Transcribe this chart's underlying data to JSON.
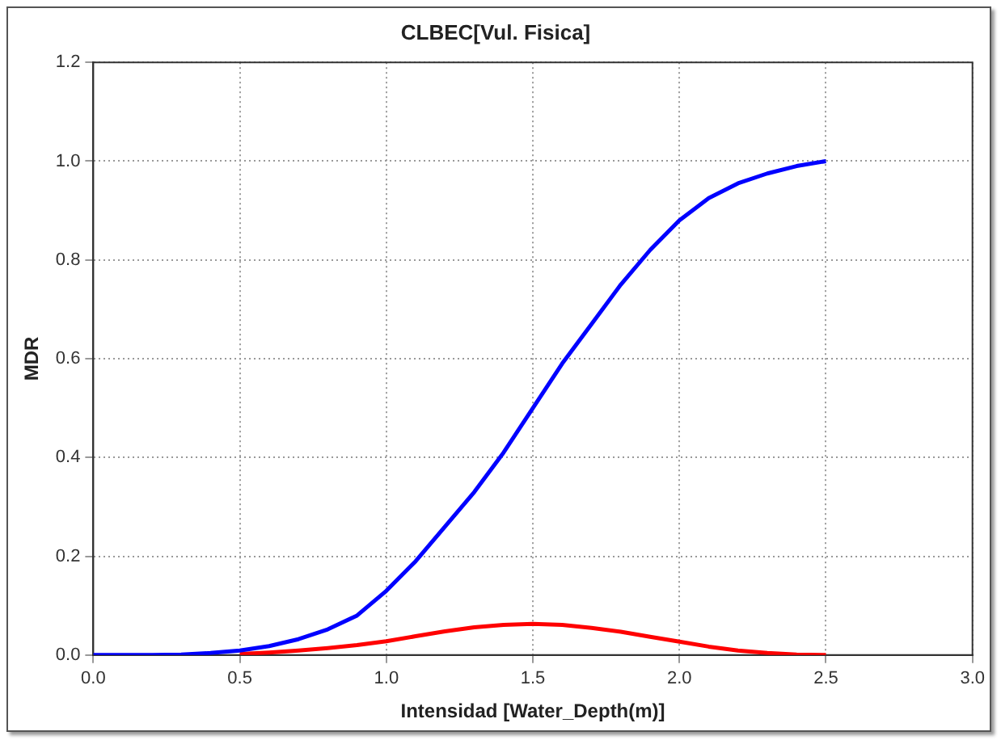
{
  "chart_data": {
    "type": "line",
    "title": "CLBEC[Vul. Fisica]",
    "xlabel": "Intensidad [Water_Depth(m)]",
    "ylabel": "MDR",
    "x": [
      0,
      0.1,
      0.2,
      0.3,
      0.4,
      0.5,
      0.6,
      0.7,
      0.8,
      0.9,
      1.0,
      1.1,
      1.2,
      1.3,
      1.4,
      1.5,
      1.6,
      1.7,
      1.8,
      1.9,
      2.0,
      2.1,
      2.2,
      2.3,
      2.4,
      2.5
    ],
    "series": [
      {
        "color": "#0000ff",
        "values": [
          0,
          0,
          0,
          0.001,
          0.004,
          0.009,
          0.018,
          0.032,
          0.052,
          0.08,
          0.13,
          0.19,
          0.26,
          0.33,
          0.41,
          0.5,
          0.59,
          0.67,
          0.75,
          0.82,
          0.88,
          0.925,
          0.955,
          0.975,
          0.99,
          1.0
        ]
      },
      {
        "color": "#ff0000",
        "values": [
          null,
          null,
          null,
          null,
          null,
          0.002,
          0.005,
          0.009,
          0.014,
          0.02,
          0.028,
          0.038,
          0.048,
          0.056,
          0.061,
          0.063,
          0.061,
          0.055,
          0.047,
          0.037,
          0.027,
          0.017,
          0.009,
          0.004,
          0.001,
          0
        ]
      }
    ],
    "xlim": [
      0,
      3.0
    ],
    "xticks": [
      {
        "value": 0,
        "label": "0.0"
      },
      {
        "value": 0.5,
        "label": "0.5"
      },
      {
        "value": 1,
        "label": "1.0"
      },
      {
        "value": 1.5,
        "label": "1.5"
      },
      {
        "value": 2,
        "label": "2.0"
      },
      {
        "value": 2.5,
        "label": "2.5"
      },
      {
        "value": 3,
        "label": "3.0"
      }
    ],
    "ylim": [
      0,
      1.2
    ],
    "yticks": [
      {
        "value": 0,
        "label": "0.0"
      },
      {
        "value": 0.2,
        "label": "0.2"
      },
      {
        "value": 0.4,
        "label": "0.4"
      },
      {
        "value": 0.6,
        "label": "0.6"
      },
      {
        "value": 0.8,
        "label": "0.8"
      },
      {
        "value": 1,
        "label": "1.0"
      },
      {
        "value": 1.2,
        "label": "1.2"
      }
    ],
    "grid": true,
    "legend": false,
    "marker": "none",
    "line_style": "solid"
  }
}
